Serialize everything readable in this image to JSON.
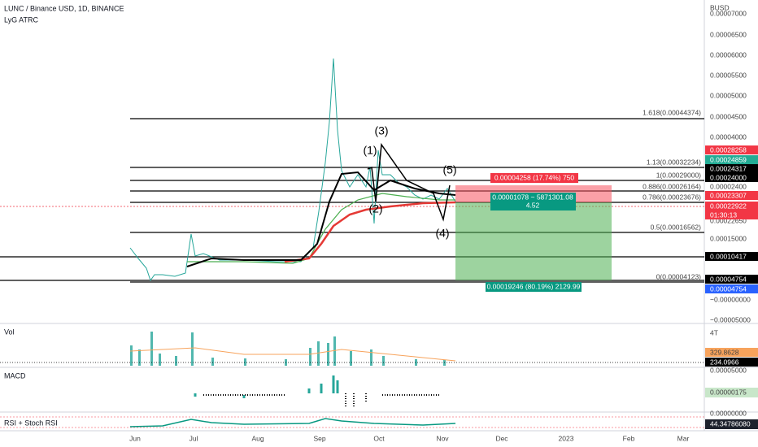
{
  "header": {
    "symbol": "LUNC / Binance USD, 1D, BINANCE",
    "indicator": "LyG ATRC",
    "currency": "BUSD"
  },
  "price_axis": [
    "0.00007000",
    "0.00006500",
    "0.00006000",
    "0.00005500",
    "0.00005000",
    "0.00004500",
    "0.00004000",
    "0.00002400",
    "0.00022650",
    "0.00015000",
    "−0.00000000",
    "−0.00005000"
  ],
  "badges": [
    "0.00028258",
    "0.00024859",
    "0.00024317",
    "0.00024000",
    "0.00023307",
    "0.00022922",
    "01:30:13",
    "0.00010417",
    "0.00004754",
    "0.00004754"
  ],
  "fib_levels": [
    "1.618(0.00044374)",
    "1.13(0.00032234)",
    "1(0.00029000)",
    "0.886(0.00026164)",
    "0.786(0.00023676)",
    "0.5(0.00016562)",
    "0(0.00004123)"
  ],
  "waves": [
    "(1)",
    "(2)",
    "(3)",
    "(4)",
    "(5)"
  ],
  "position": {
    "stop": "0.00004258 (17.74%) 750",
    "entry": "0.00001078 ~ 5871301.08",
    "ratio": "4.52",
    "target": "0.00019246 (80.19%) 2129.99"
  },
  "panes": {
    "volume": {
      "title": "Vol",
      "axis": "4T",
      "ma": "329.8628",
      "value": "234.0966"
    },
    "macd": {
      "title": "MACD",
      "axis_top": "0.00005000",
      "value": "0.00000175",
      "axis_bottom": "0.00000000"
    },
    "rsi": {
      "title": "RSI + Stoch RSI",
      "value": "44.34786080"
    }
  },
  "time_axis": [
    "Jun",
    "Jul",
    "Aug",
    "Sep",
    "Oct",
    "Nov",
    "Dec",
    "2023",
    "Feb",
    "Mar"
  ]
}
